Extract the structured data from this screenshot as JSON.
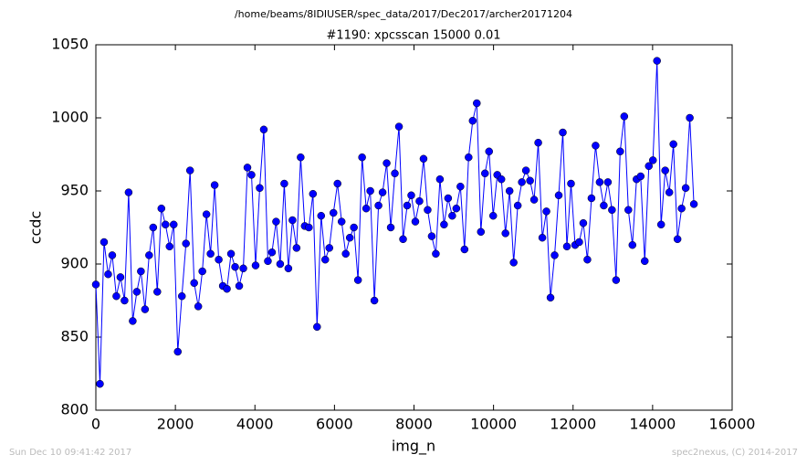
{
  "chart_data": {
    "type": "line",
    "suptitle": "/home/beams/8IDIUSER/spec_data/2017/Dec2017/archer20171204",
    "title": "#1190: xpcsscan 15000 0.01",
    "xlabel": "img_n",
    "ylabel": "ccdc",
    "timestamp": "Sun Dec 10 09:41:42 2017",
    "credit": "spec2nexus, (C) 2014-2017",
    "x": [
      0,
      103,
      206,
      309,
      412,
      515,
      618,
      721,
      824,
      927,
      1030,
      1133,
      1236,
      1339,
      1442,
      1545,
      1648,
      1751,
      1854,
      1957,
      2060,
      2163,
      2266,
      2369,
      2472,
      2575,
      2678,
      2781,
      2884,
      2987,
      3090,
      3193,
      3296,
      3399,
      3502,
      3605,
      3708,
      3811,
      3914,
      4017,
      4120,
      4223,
      4326,
      4429,
      4532,
      4635,
      4738,
      4841,
      4944,
      5047,
      5150,
      5253,
      5356,
      5459,
      5562,
      5665,
      5768,
      5871,
      5974,
      6077,
      6180,
      6283,
      6386,
      6489,
      6592,
      6695,
      6798,
      6901,
      7004,
      7107,
      7210,
      7313,
      7416,
      7519,
      7622,
      7725,
      7828,
      7931,
      8034,
      8137,
      8240,
      8343,
      8446,
      8549,
      8652,
      8755,
      8858,
      8961,
      9064,
      9167,
      9270,
      9373,
      9476,
      9579,
      9682,
      9785,
      9888,
      9991,
      10094,
      10197,
      10300,
      10403,
      10506,
      10609,
      10712,
      10815,
      10918,
      11021,
      11124,
      11227,
      11330,
      11433,
      11536,
      11639,
      11742,
      11845,
      11948,
      12051,
      12154,
      12257,
      12360,
      12463,
      12566,
      12669,
      12772,
      12875,
      12978,
      13081,
      13184,
      13287,
      13390,
      13493,
      13596,
      13699,
      13802,
      13905,
      14008,
      14111,
      14214,
      14317,
      14420,
      14523,
      14626,
      14729,
      14832,
      14935,
      15038
    ],
    "series": [
      {
        "color": "#0000ff",
        "values": [
          886,
          818,
          915,
          893,
          906,
          878,
          891,
          875,
          949,
          861,
          881,
          895,
          869,
          906,
          925,
          881,
          938,
          927,
          912,
          927,
          840,
          878,
          914,
          964,
          887,
          871,
          895,
          934,
          907,
          954,
          903,
          885,
          883,
          907,
          898,
          885,
          897,
          966,
          961,
          899,
          952,
          992,
          902,
          908,
          929,
          900,
          955,
          897,
          930,
          911,
          973,
          926,
          925,
          948,
          857,
          933,
          903,
          911,
          935,
          955,
          929,
          907,
          918,
          925,
          889,
          973,
          938,
          950,
          875,
          940,
          949,
          969,
          925,
          962,
          994,
          917,
          940,
          947,
          929,
          943,
          972,
          937,
          919,
          907,
          958,
          927,
          945,
          933,
          938,
          953,
          910,
          973,
          998,
          1010,
          922,
          962,
          977,
          933,
          961,
          958,
          921,
          950,
          901,
          940,
          956,
          964,
          957,
          944,
          983,
          918,
          936,
          877,
          906,
          947,
          990,
          912,
          955,
          913,
          915,
          928,
          903,
          945,
          981,
          956,
          940,
          956,
          937,
          889,
          977,
          1001,
          937,
          913,
          958,
          960,
          902,
          967,
          971,
          1039,
          927,
          964,
          949,
          982,
          917,
          938,
          952,
          1000,
          941
        ]
      }
    ],
    "xlim": [
      0,
      16000
    ],
    "xticks": [
      0,
      2000,
      4000,
      6000,
      8000,
      10000,
      12000,
      14000,
      16000
    ],
    "ylim": [
      800,
      1050
    ],
    "yticks": [
      800,
      850,
      900,
      950,
      1000,
      1050
    ]
  }
}
